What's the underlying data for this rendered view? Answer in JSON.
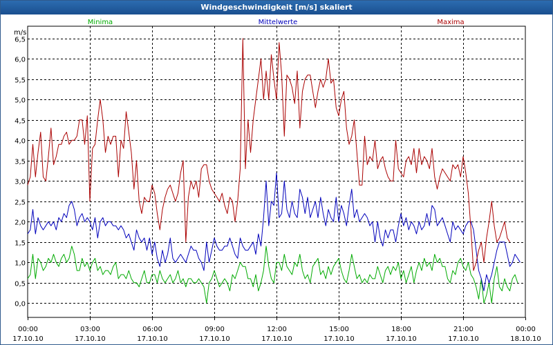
{
  "window": {
    "title": "Windgeschwindigkeit [m/s] skaliert"
  },
  "chart_data": {
    "type": "line",
    "title": "Windgeschwindigkeit [m/s] skaliert",
    "ylabel": "m/s",
    "ylim": [
      -0.35,
      6.8
    ],
    "yticks": [
      "0,0",
      "0,5",
      "1,0",
      "1,5",
      "2,0",
      "2,5",
      "3,0",
      "3,5",
      "4,0",
      "4,5",
      "5,0",
      "5,5",
      "6,0",
      "6,5"
    ],
    "ytick_values": [
      0,
      0.5,
      1,
      1.5,
      2,
      2.5,
      3,
      3.5,
      4,
      4.5,
      5,
      5.5,
      6,
      6.5
    ],
    "xlim_hours": [
      0,
      24
    ],
    "xticks": [
      {
        "time": "00:00",
        "date": "17.10.10",
        "hour": 0
      },
      {
        "time": "03:00",
        "date": "17.10.10",
        "hour": 3
      },
      {
        "time": "06:00",
        "date": "17.10.10",
        "hour": 6
      },
      {
        "time": "09:00",
        "date": "17.10.10",
        "hour": 9
      },
      {
        "time": "12:00",
        "date": "17.10.10",
        "hour": 12
      },
      {
        "time": "15:00",
        "date": "17.10.10",
        "hour": 15
      },
      {
        "time": "18:00",
        "date": "17.10.10",
        "hour": 18
      },
      {
        "time": "21:00",
        "date": "17.10.10",
        "hour": 21
      },
      {
        "time": "00:00",
        "date": "18.10.10",
        "hour": 24
      }
    ],
    "grid": true,
    "sample_interval_hours": 0.125,
    "series": [
      {
        "name": "Minima",
        "color": "#00aa00",
        "values": [
          0.6,
          0.7,
          1.2,
          0.6,
          1.1,
          1.0,
          0.8,
          0.9,
          1.1,
          1.0,
          1.2,
          1.0,
          0.9,
          1.1,
          1.2,
          1.0,
          1.1,
          1.4,
          1.2,
          0.8,
          0.8,
          1.1,
          0.9,
          1.0,
          0.8,
          1.0,
          1.1,
          0.8,
          0.9,
          0.7,
          0.8,
          0.8,
          0.7,
          0.9,
          1.0,
          0.6,
          0.7,
          0.7,
          0.6,
          0.8,
          0.6,
          0.5,
          0.5,
          0.4,
          0.6,
          0.8,
          0.5,
          0.5,
          0.7,
          0.7,
          0.5,
          0.8,
          0.6,
          0.5,
          0.6,
          0.7,
          0.5,
          0.6,
          0.8,
          0.5,
          0.6,
          0.4,
          0.6,
          0.6,
          0.5,
          0.5,
          0.6,
          0.5,
          0.4,
          0.0,
          0.5,
          0.6,
          0.8,
          0.6,
          0.4,
          0.5,
          0.6,
          0.5,
          0.3,
          0.7,
          0.6,
          0.8,
          1.0,
          0.9,
          0.9,
          0.6,
          0.6,
          0.4,
          0.7,
          0.3,
          0.5,
          0.8,
          1.4,
          0.9,
          0.6,
          0.5,
          1.0,
          1.0,
          0.8,
          1.2,
          0.9,
          0.8,
          0.7,
          1.0,
          0.9,
          1.2,
          0.8,
          0.6,
          0.7,
          0.5,
          0.9,
          1.0,
          1.1,
          0.7,
          0.8,
          0.6,
          0.9,
          0.7,
          0.9,
          1.0,
          1.1,
          0.8,
          0.6,
          0.5,
          0.8,
          1.2,
          0.9,
          0.6,
          0.7,
          0.5,
          0.6,
          0.5,
          0.7,
          0.6,
          0.6,
          0.9,
          0.7,
          0.5,
          0.8,
          0.9,
          0.7,
          0.9,
          0.8,
          1.0,
          0.6,
          0.8,
          0.5,
          0.7,
          0.9,
          0.5,
          0.8,
          1.0,
          0.8,
          1.1,
          0.9,
          1.0,
          0.8,
          1.2,
          1.0,
          1.1,
          0.9,
          0.9,
          0.6,
          0.5,
          0.8,
          0.7,
          1.0,
          1.1,
          0.9,
          0.8,
          1.0,
          0.7,
          0.6,
          0.4,
          0.1,
          0.6,
          0.0,
          0.2,
          0.5,
          0.0,
          0.6,
          0.9,
          0.4,
          0.3,
          0.6,
          0.4,
          0.3,
          0.6,
          0.7,
          0.5
        ]
      },
      {
        "name": "Mittelwerte",
        "color": "#0000bb",
        "values": [
          1.7,
          1.8,
          2.3,
          1.7,
          2.1,
          1.9,
          1.8,
          1.9,
          2.0,
          1.9,
          2.0,
          1.8,
          2.1,
          2.0,
          2.2,
          2.1,
          2.4,
          2.5,
          2.3,
          1.9,
          2.1,
          2.2,
          2.0,
          2.1,
          2.0,
          1.8,
          2.1,
          1.6,
          2.0,
          2.1,
          1.9,
          2.0,
          2.0,
          1.9,
          1.9,
          1.8,
          1.9,
          1.8,
          1.6,
          1.7,
          1.5,
          1.3,
          1.8,
          1.6,
          1.5,
          1.6,
          1.3,
          1.6,
          1.2,
          1.5,
          1.1,
          0.9,
          1.3,
          1.0,
          1.2,
          1.6,
          1.1,
          1.0,
          1.1,
          1.2,
          1.1,
          1.0,
          1.2,
          1.4,
          1.3,
          1.3,
          1.1,
          1.0,
          0.8,
          1.5,
          1.0,
          1.3,
          1.6,
          1.4,
          1.3,
          1.3,
          1.4,
          1.4,
          1.6,
          1.4,
          1.2,
          1.1,
          1.6,
          1.4,
          1.3,
          1.3,
          1.4,
          1.5,
          1.2,
          1.7,
          1.4,
          2.1,
          3.0,
          1.9,
          2.5,
          2.4,
          3.2,
          2.1,
          2.2,
          3.0,
          2.3,
          2.1,
          2.5,
          2.2,
          2.1,
          2.8,
          2.6,
          2.2,
          2.6,
          2.1,
          2.3,
          2.5,
          2.1,
          2.6,
          2.2,
          1.9,
          2.3,
          2.1,
          2.0,
          2.6,
          2.0,
          2.4,
          2.2,
          1.9,
          2.4,
          2.8,
          2.1,
          2.3,
          2.0,
          2.1,
          2.2,
          2.1,
          1.9,
          2.0,
          1.5,
          2.0,
          1.6,
          1.4,
          1.8,
          1.6,
          1.8,
          1.8,
          1.5,
          1.9,
          2.2,
          1.9,
          2.1,
          1.8,
          2.0,
          1.9,
          1.7,
          2.0,
          1.8,
          1.9,
          2.2,
          1.9,
          2.4,
          2.3,
          1.9,
          2.0,
          2.1,
          1.9,
          1.7,
          1.5,
          2.0,
          1.8,
          1.9,
          1.8,
          1.7,
          1.9,
          2.0,
          2.0,
          1.8,
          1.3,
          0.8,
          0.6,
          0.3,
          0.7,
          0.5,
          0.7,
          1.0,
          1.3,
          1.5,
          1.5,
          1.5,
          1.2,
          0.9,
          1.0,
          1.2,
          1.1,
          1.0
        ]
      },
      {
        "name": "Maxima",
        "color": "#aa0000",
        "values": [
          2.9,
          3.1,
          3.9,
          3.1,
          3.7,
          4.2,
          3.1,
          3.0,
          3.6,
          4.3,
          3.4,
          3.6,
          3.9,
          3.9,
          4.1,
          4.2,
          3.9,
          4.0,
          4.0,
          4.1,
          4.5,
          4.5,
          3.9,
          4.6,
          2.5,
          3.8,
          3.9,
          4.5,
          5.0,
          4.5,
          3.7,
          4.1,
          3.9,
          4.1,
          4.1,
          3.1,
          4.0,
          3.8,
          4.7,
          4.2,
          3.7,
          2.8,
          3.5,
          2.5,
          2.2,
          2.6,
          2.5,
          2.5,
          2.9,
          2.7,
          2.2,
          1.8,
          2.3,
          2.6,
          2.8,
          2.9,
          2.7,
          2.5,
          2.7,
          3.2,
          3.5,
          1.5,
          2.6,
          3.0,
          2.8,
          3.0,
          2.6,
          3.3,
          3.4,
          3.4,
          3.0,
          2.8,
          2.7,
          2.6,
          2.5,
          2.7,
          2.4,
          2.2,
          2.6,
          2.5,
          2.0,
          2.5,
          3.3,
          6.5,
          3.3,
          4.5,
          3.7,
          4.5,
          5.0,
          5.5,
          6.0,
          5.0,
          5.7,
          5.0,
          6.1,
          5.5,
          5.0,
          6.4,
          5.6,
          4.1,
          5.6,
          5.5,
          5.3,
          4.9,
          5.7,
          4.3,
          5.2,
          5.5,
          5.6,
          5.6,
          5.2,
          4.8,
          5.2,
          5.5,
          5.3,
          5.5,
          6.0,
          5.4,
          5.5,
          4.8,
          4.6,
          5.0,
          5.2,
          4.3,
          3.9,
          4.1,
          4.5,
          3.7,
          2.9,
          2.9,
          4.1,
          3.4,
          3.6,
          3.5,
          4.0,
          3.3,
          3.5,
          3.6,
          3.3,
          3.1,
          3.0,
          3.0,
          4.0,
          3.3,
          3.2,
          3.1,
          3.5,
          3.6,
          3.4,
          3.8,
          3.2,
          3.8,
          3.4,
          3.6,
          3.5,
          3.3,
          3.8,
          3.1,
          2.8,
          3.1,
          3.3,
          3.2,
          3.1,
          3.0,
          3.4,
          3.3,
          3.4,
          3.1,
          3.6,
          3.2,
          2.7,
          1.8,
          0.8,
          1.0,
          1.3,
          1.5,
          1.0,
          1.6,
          2.0,
          2.5,
          1.9,
          1.5,
          1.6,
          1.8,
          2.0,
          1.6,
          1.5
        ]
      }
    ]
  }
}
